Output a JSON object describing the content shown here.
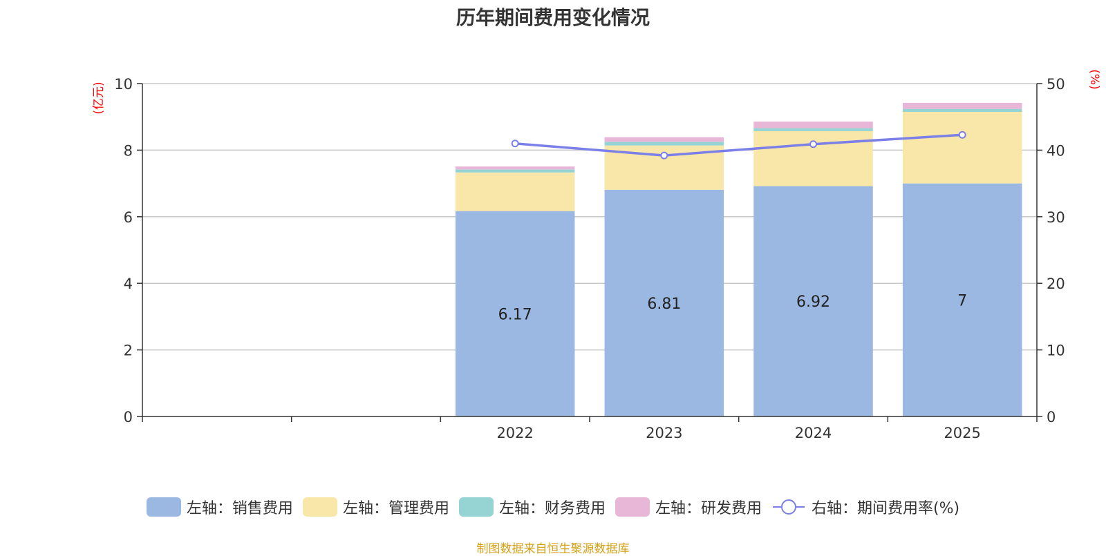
{
  "title": "历年期间费用变化情况",
  "source_note": "制图数据来自恒生聚源数据库",
  "chart_data": {
    "type": "bar",
    "stacked": true,
    "title": "历年期间费用变化情况",
    "categories": [
      "",
      "",
      "2022",
      "2023",
      "2024",
      "2025"
    ],
    "left_axis": {
      "unit": "(亿元)",
      "ylim": [
        0,
        10
      ],
      "ticks": [
        0,
        2,
        4,
        6,
        8,
        10
      ]
    },
    "right_axis": {
      "unit": "(%)",
      "ylim": [
        0,
        50
      ],
      "ticks": [
        0,
        10,
        20,
        30,
        40,
        50
      ]
    },
    "grid": true,
    "legend_position": "bottom",
    "series": [
      {
        "name": "左轴：销售费用",
        "axis": "left",
        "type": "bar",
        "color": "#9bb8e2",
        "values": [
          null,
          null,
          6.17,
          6.81,
          6.92,
          7
        ],
        "labels": [
          "",
          "",
          "6.17",
          "6.81",
          "6.92",
          "7"
        ]
      },
      {
        "name": "左轴：管理费用",
        "axis": "left",
        "type": "bar",
        "color": "#f8e7a8",
        "values": [
          null,
          null,
          1.16,
          1.33,
          1.65,
          2.15
        ]
      },
      {
        "name": "左轴：财务费用",
        "axis": "left",
        "type": "bar",
        "color": "#96d4d4",
        "values": [
          null,
          null,
          0.09,
          0.11,
          0.09,
          0.09
        ]
      },
      {
        "name": "左轴：研发费用",
        "axis": "left",
        "type": "bar",
        "color": "#e8b7d8",
        "values": [
          null,
          null,
          0.09,
          0.14,
          0.2,
          0.18
        ]
      },
      {
        "name": "右轴：期间费用率(%)",
        "axis": "right",
        "type": "line",
        "color": "#7b7fe8",
        "values": [
          null,
          null,
          41.0,
          39.2,
          40.9,
          42.3
        ]
      }
    ]
  }
}
